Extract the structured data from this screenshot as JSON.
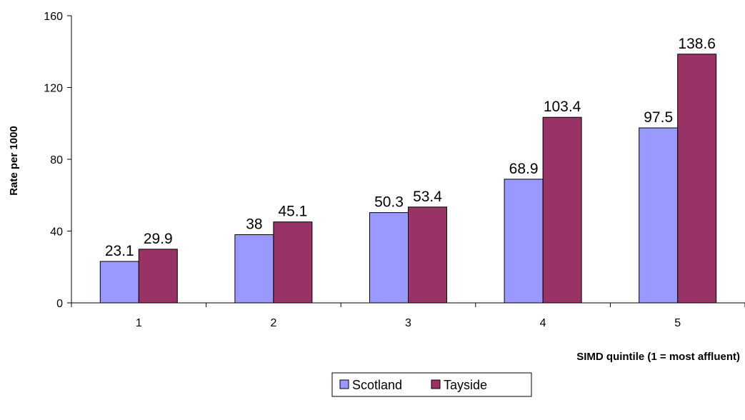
{
  "chart_data": {
    "type": "bar",
    "title": "",
    "xlabel": "SIMD quintile (1 = most affluent)",
    "ylabel": "Rate per 1000",
    "categories": [
      "1",
      "2",
      "3",
      "4",
      "5"
    ],
    "series": [
      {
        "name": "Scotland",
        "values": [
          23.1,
          38,
          50.3,
          68.9,
          97.5
        ],
        "labels": [
          "23.1",
          "38",
          "50.3",
          "68.9",
          "97.5"
        ],
        "color": "#9999ff"
      },
      {
        "name": "Tayside",
        "values": [
          29.9,
          45.1,
          53.4,
          103.4,
          138.6
        ],
        "labels": [
          "29.9",
          "45.1",
          "53.4",
          "103.4",
          "138.6"
        ],
        "color": "#993366"
      }
    ],
    "ylim": [
      0,
      160
    ],
    "yticks": [
      "0",
      "40",
      "80",
      "120",
      "160"
    ],
    "grid": false,
    "legend_position": "bottom-center"
  }
}
